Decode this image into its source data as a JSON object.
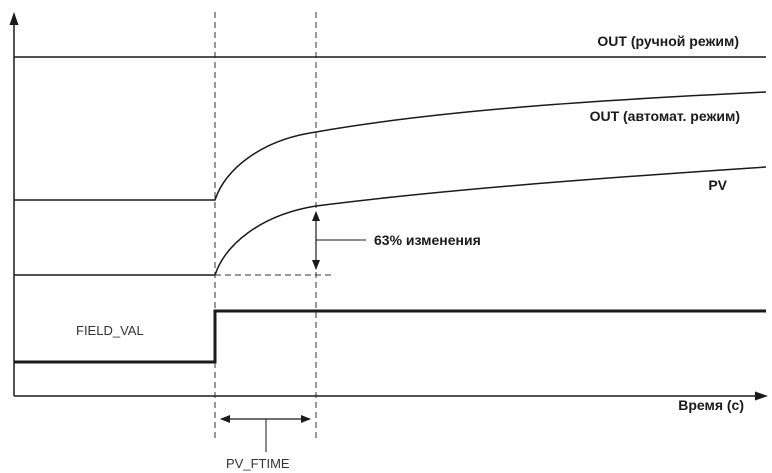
{
  "labels": {
    "out_manual": "OUT (ручной режим)",
    "out_auto": "OUT (автомат. режим)",
    "pv": "PV",
    "change_63": "63% изменения",
    "field_val": "FIELD_VAL",
    "time_axis": "Время (с)",
    "pv_ftime": "PV_FTIME"
  },
  "colors": {
    "line": "#1a1a1a",
    "dashed": "#333333"
  }
}
